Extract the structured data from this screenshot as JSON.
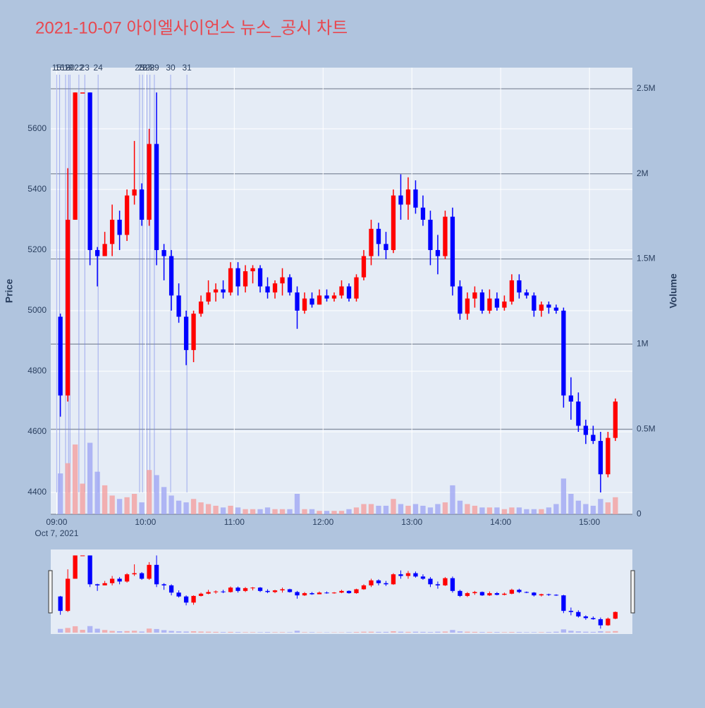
{
  "chart_data": {
    "type": "candlestick",
    "title": "2021-10-07 아이엘사이언스 뉴스_공시 차트",
    "ylabel": "Price",
    "y2label": "Volume",
    "increasing_color": "#ff0000",
    "decreasing_color": "#0000ff",
    "x": [
      "2021-10-07 09:00",
      "2021-10-07 09:05",
      "2021-10-07 09:10",
      "2021-10-07 09:15",
      "2021-10-07 09:20",
      "2021-10-07 09:25",
      "2021-10-07 09:30",
      "2021-10-07 09:35",
      "2021-10-07 09:40",
      "2021-10-07 09:45",
      "2021-10-07 09:50",
      "2021-10-07 09:55",
      "2021-10-07 10:00",
      "2021-10-07 10:05",
      "2021-10-07 10:10",
      "2021-10-07 10:15",
      "2021-10-07 10:20",
      "2021-10-07 10:25",
      "2021-10-07 10:30",
      "2021-10-07 10:35",
      "2021-10-07 10:40",
      "2021-10-07 10:45",
      "2021-10-07 10:50",
      "2021-10-07 10:55",
      "2021-10-07 11:00",
      "2021-10-07 11:05",
      "2021-10-07 11:10",
      "2021-10-07 11:15",
      "2021-10-07 11:20",
      "2021-10-07 11:25",
      "2021-10-07 11:30",
      "2021-10-07 11:35",
      "2021-10-07 11:40",
      "2021-10-07 11:45",
      "2021-10-07 11:50",
      "2021-10-07 11:55",
      "2021-10-07 12:00",
      "2021-10-07 12:05",
      "2021-10-07 12:10",
      "2021-10-07 12:15",
      "2021-10-07 12:20",
      "2021-10-07 12:25",
      "2021-10-07 12:30",
      "2021-10-07 12:35",
      "2021-10-07 12:40",
      "2021-10-07 12:45",
      "2021-10-07 12:50",
      "2021-10-07 12:55",
      "2021-10-07 13:00",
      "2021-10-07 13:05",
      "2021-10-07 13:10",
      "2021-10-07 13:15",
      "2021-10-07 13:20",
      "2021-10-07 13:25",
      "2021-10-07 13:30",
      "2021-10-07 13:35",
      "2021-10-07 13:40",
      "2021-10-07 13:45",
      "2021-10-07 13:50",
      "2021-10-07 13:55",
      "2021-10-07 14:00",
      "2021-10-07 14:05",
      "2021-10-07 14:10",
      "2021-10-07 14:15",
      "2021-10-07 14:20",
      "2021-10-07 14:25",
      "2021-10-07 14:30",
      "2021-10-07 14:35",
      "2021-10-07 14:40",
      "2021-10-07 14:45",
      "2021-10-07 14:50",
      "2021-10-07 14:55",
      "2021-10-07 15:00",
      "2021-10-07 15:05",
      "2021-10-07 15:10",
      "2021-10-07 15:15"
    ],
    "open": [
      4980,
      4720,
      5300,
      5720,
      5720,
      5200,
      5180,
      5220,
      5300,
      5250,
      5380,
      5400,
      5300,
      5550,
      5200,
      5180,
      5050,
      4980,
      4870,
      4990,
      5030,
      5060,
      5070,
      5060,
      5140,
      5080,
      5130,
      5140,
      5080,
      5060,
      5090,
      5110,
      5060,
      5000,
      5040,
      5020,
      5050,
      5040,
      5050,
      5080,
      5040,
      5110,
      5180,
      5270,
      5220,
      5200,
      5380,
      5350,
      5400,
      5340,
      5300,
      5200,
      5180,
      5310,
      5080,
      4990,
      5040,
      5060,
      5000,
      5040,
      5010,
      5030,
      5100,
      5060,
      5050,
      5000,
      5020,
      5010,
      5000,
      4720,
      4700,
      4620,
      4590,
      4570,
      4460,
      4580
    ],
    "high": [
      4990,
      5470,
      5720,
      5720,
      5720,
      5210,
      5260,
      5350,
      5330,
      5400,
      5560,
      5420,
      5600,
      5720,
      5220,
      5200,
      5090,
      5000,
      5000,
      5050,
      5100,
      5090,
      5100,
      5160,
      5160,
      5150,
      5150,
      5150,
      5110,
      5100,
      5140,
      5120,
      5080,
      5060,
      5060,
      5070,
      5070,
      5060,
      5100,
      5090,
      5120,
      5200,
      5300,
      5290,
      5260,
      5400,
      5450,
      5440,
      5430,
      5380,
      5330,
      5250,
      5330,
      5340,
      5100,
      5060,
      5080,
      5070,
      5070,
      5060,
      5050,
      5120,
      5120,
      5070,
      5060,
      5030,
      5030,
      5020,
      5010,
      4780,
      4730,
      4640,
      4620,
      4600,
      4600,
      4710
    ],
    "low": [
      4650,
      4700,
      5300,
      5720,
      5150,
      5080,
      5180,
      5180,
      5200,
      5230,
      5350,
      5280,
      5280,
      5150,
      5100,
      5000,
      4960,
      4820,
      4830,
      4980,
      5020,
      5030,
      5040,
      5050,
      5050,
      5060,
      5090,
      5060,
      5040,
      5040,
      5050,
      5050,
      4940,
      4990,
      5010,
      5020,
      5030,
      5030,
      5040,
      5030,
      5030,
      5100,
      5150,
      5180,
      5170,
      5190,
      5300,
      5300,
      5320,
      5280,
      5150,
      5120,
      5170,
      5050,
      4970,
      4970,
      5010,
      4990,
      4990,
      5000,
      5000,
      5020,
      5040,
      5040,
      4980,
      4980,
      4990,
      4990,
      4680,
      4640,
      4600,
      4560,
      4560,
      4400,
      4450,
      4570
    ],
    "close": [
      4720,
      5300,
      5720,
      5720,
      5200,
      5180,
      5220,
      5300,
      5250,
      5380,
      5400,
      5300,
      5550,
      5200,
      5180,
      5050,
      4980,
      4870,
      4990,
      5030,
      5060,
      5070,
      5060,
      5140,
      5080,
      5130,
      5140,
      5080,
      5060,
      5090,
      5110,
      5060,
      5000,
      5040,
      5020,
      5050,
      5040,
      5050,
      5080,
      5040,
      5110,
      5180,
      5270,
      5220,
      5200,
      5380,
      5350,
      5400,
      5340,
      5300,
      5200,
      5180,
      5310,
      5080,
      4990,
      5040,
      5060,
      5000,
      5040,
      5010,
      5030,
      5100,
      5060,
      5050,
      5000,
      5020,
      5010,
      5000,
      4720,
      4700,
      4620,
      4590,
      4570,
      4460,
      4580,
      4700
    ],
    "volume": [
      240000,
      300000,
      410000,
      180000,
      420000,
      250000,
      170000,
      110000,
      90000,
      100000,
      120000,
      70000,
      260000,
      230000,
      160000,
      110000,
      80000,
      70000,
      90000,
      70000,
      60000,
      50000,
      40000,
      50000,
      40000,
      30000,
      30000,
      30000,
      40000,
      30000,
      30000,
      30000,
      120000,
      30000,
      30000,
      20000,
      20000,
      20000,
      20000,
      30000,
      40000,
      60000,
      60000,
      50000,
      50000,
      90000,
      60000,
      50000,
      60000,
      50000,
      40000,
      60000,
      70000,
      170000,
      80000,
      60000,
      50000,
      40000,
      40000,
      40000,
      30000,
      40000,
      40000,
      30000,
      30000,
      30000,
      40000,
      60000,
      210000,
      120000,
      80000,
      60000,
      50000,
      90000,
      70000,
      100000
    ],
    "ylim": [
      4328,
      5802
    ],
    "yticks": [
      4400,
      4600,
      4800,
      5000,
      5200,
      5400,
      5600
    ],
    "y2lim": [
      0,
      2624000
    ],
    "y2ticks": [
      0,
      {
        "value": 500000,
        "label": "0.5M"
      },
      {
        "value": 1000000,
        "label": "1M"
      },
      {
        "value": 1500000,
        "label": "1.5M"
      },
      {
        "value": 2000000,
        "label": "2M"
      },
      {
        "value": 2500000,
        "label": "2.5M"
      }
    ],
    "xlim": [
      "2021-10-07 08:56",
      "2021-10-07 15:29"
    ],
    "xticks": [
      {
        "value": "2021-10-07 09:00",
        "label": "09:00"
      },
      {
        "value": "2021-10-07 10:00",
        "label": "10:00"
      },
      {
        "value": "2021-10-07 11:00",
        "label": "11:00"
      },
      {
        "value": "2021-10-07 12:00",
        "label": "12:00"
      },
      {
        "value": "2021-10-07 13:00",
        "label": "13:00"
      },
      {
        "value": "2021-10-07 14:00",
        "label": "14:00"
      },
      {
        "value": "2021-10-07 15:00",
        "label": "15:00"
      }
    ],
    "xdate_label": "Oct 7, 2021",
    "news": [
      {
        "label": "15",
        "x": "2021-10-07 09:00"
      },
      {
        "label": "16",
        "x": "2021-10-07 09:02"
      },
      {
        "label": "18",
        "x": "2021-10-07 09:06"
      },
      {
        "label": "19",
        "x": "2021-10-07 09:08"
      },
      {
        "label": "20",
        "x": "2021-10-07 09:09"
      },
      {
        "label": "22",
        "x": "2021-10-07 09:15"
      },
      {
        "label": "23",
        "x": "2021-10-07 09:19"
      },
      {
        "label": "24",
        "x": "2021-10-07 09:28"
      },
      {
        "label": "25",
        "x": "2021-10-07 09:56"
      },
      {
        "label": "26",
        "x": "2021-10-07 09:58"
      },
      {
        "label": "27",
        "x": "2021-10-07 10:01"
      },
      {
        "label": "28",
        "x": "2021-10-07 10:03"
      },
      {
        "label": "29",
        "x": "2021-10-07 10:06"
      },
      {
        "label": "30",
        "x": "2021-10-07 10:17"
      },
      {
        "label": "31",
        "x": "2021-10-07 10:28"
      }
    ]
  }
}
